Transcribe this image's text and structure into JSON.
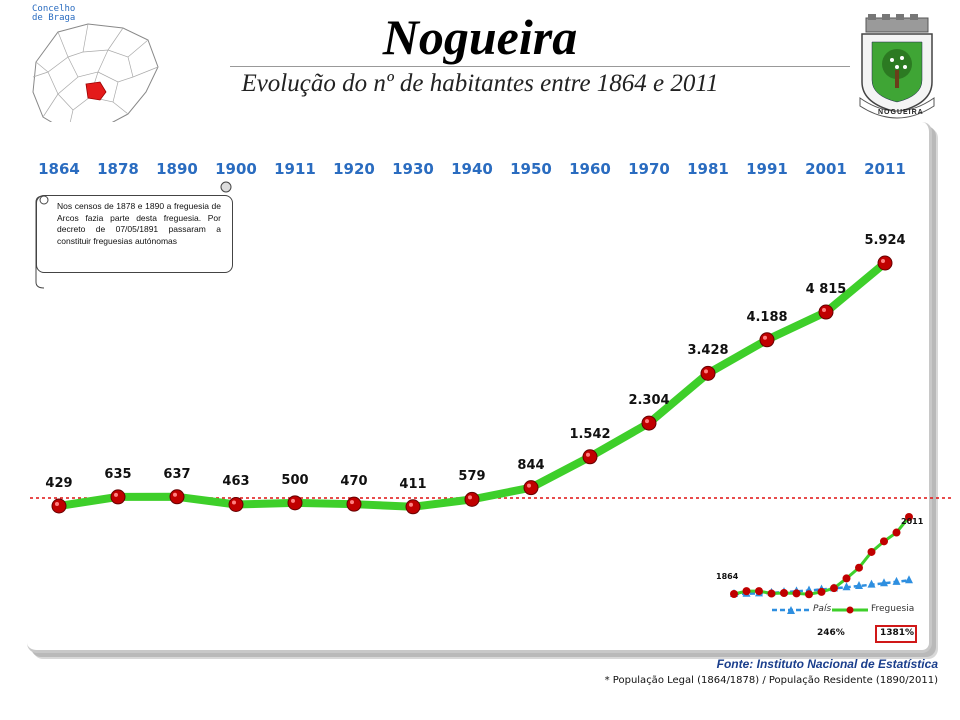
{
  "header": {
    "title": "Nogueira",
    "subtitle": "Evolução do nº de habitantes entre 1864 e 2011",
    "concelho_label_line1": "Concelho",
    "concelho_label_line2": "de Braga",
    "coat_of_arms_label": "NOGUEIRA"
  },
  "note": {
    "text": "Nos censos de 1878 e 1890 a freguesia de Arcos fazia parte desta freguesia. Por decreto de 07/05/1891 passaram a constituir freguesias autónomas"
  },
  "chart_data": [
    {
      "type": "line",
      "categories": [
        "1864",
        "1878",
        "1890",
        "1900",
        "1911",
        "1920",
        "1930",
        "1940",
        "1950",
        "1960",
        "1970",
        "1981",
        "1991",
        "2001",
        "2011"
      ],
      "series": [
        {
          "values": [
            429,
            635,
            637,
            463,
            500,
            470,
            411,
            579,
            844,
            1542,
            2304,
            3428,
            4188,
            4815,
            5924
          ],
          "value_labels": [
            "429",
            "635",
            "637",
            "463",
            "500",
            "470",
            "411",
            "579",
            "844",
            "1.542",
            "2.304",
            "3.428",
            "4.188",
            "4 815",
            "5.924"
          ]
        }
      ],
      "ylim": [
        0,
        6000
      ],
      "reference_line": 429,
      "colors": {
        "line": "#3ecf2a",
        "marker": "#c00000",
        "reference": "#e01010",
        "year_text": "#2a6cc0"
      }
    },
    {
      "type": "line",
      "start_label": "1864",
      "end_label": "2011",
      "series": [
        {
          "name": "País",
          "change_label": "246%",
          "color": "#2e8fe0"
        },
        {
          "name": "Freguesia",
          "change_label": "1381%",
          "color": "#3ecf2a"
        }
      ]
    }
  ],
  "source": {
    "label": "Fonte: Instituto Nacional de Estatística",
    "footnote": "* População Legal (1864/1878) / População Residente (1890/2011)"
  }
}
